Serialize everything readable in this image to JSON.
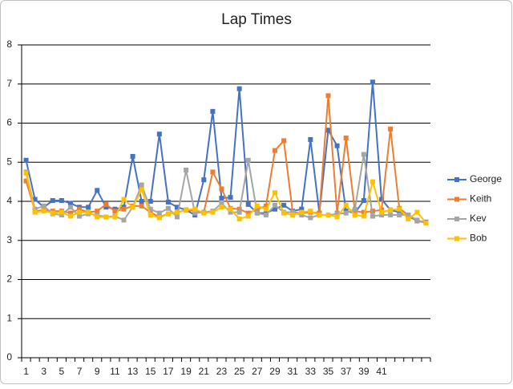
{
  "chart_data": {
    "type": "line",
    "title": "Lap Times",
    "categories": [
      "1",
      null,
      "3",
      null,
      "5",
      null,
      "7",
      null,
      "9",
      null,
      "11",
      null,
      "13",
      null,
      "15",
      null,
      "17",
      null,
      "19",
      null,
      "21",
      null,
      "23",
      null,
      "25",
      null,
      "27",
      null,
      "29",
      null,
      "31",
      null,
      "33",
      null,
      "35",
      null,
      "37",
      null,
      "39",
      null,
      "41",
      null,
      null,
      null,
      null,
      null
    ],
    "ylim": [
      0,
      8
    ],
    "yticks": [
      0,
      1,
      2,
      3,
      4,
      5,
      6,
      7,
      8
    ],
    "grid": true,
    "legend": "right",
    "series": [
      {
        "name": "George",
        "color": "#4472c4",
        "values": [
          5.05,
          4.05,
          3.85,
          4.02,
          4.02,
          3.95,
          3.85,
          3.85,
          4.28,
          3.85,
          3.8,
          3.85,
          5.15,
          4.0,
          4.0,
          5.72,
          3.98,
          3.85,
          3.78,
          3.65,
          4.55,
          6.3,
          4.08,
          4.1,
          6.88,
          3.92,
          3.7,
          3.7,
          3.8,
          3.9,
          3.75,
          3.8,
          5.58,
          3.7,
          5.82,
          5.42,
          3.75,
          3.7,
          4.02,
          7.05,
          4.05,
          3.78,
          3.72,
          3.62,
          3.5,
          3.47
        ]
      },
      {
        "name": "Keith",
        "color": "#ed7d31",
        "values": [
          4.52,
          3.75,
          3.78,
          3.75,
          3.75,
          3.7,
          3.8,
          3.72,
          3.75,
          3.92,
          3.75,
          3.8,
          3.88,
          3.88,
          3.72,
          3.6,
          3.68,
          3.72,
          3.78,
          3.75,
          3.72,
          4.75,
          4.32,
          3.82,
          3.8,
          3.7,
          3.8,
          3.88,
          5.3,
          5.55,
          3.72,
          3.7,
          3.72,
          3.7,
          6.7,
          3.7,
          5.62,
          3.75,
          3.72,
          3.75,
          3.78,
          5.85,
          3.82,
          3.65,
          3.5,
          3.45
        ]
      },
      {
        "name": "Kev",
        "color": "#a5a5a5",
        "values": [
          4.75,
          3.8,
          3.88,
          3.68,
          3.65,
          3.85,
          3.62,
          3.68,
          3.65,
          3.6,
          3.62,
          3.52,
          3.85,
          4.42,
          3.8,
          3.7,
          3.82,
          3.6,
          4.8,
          3.7,
          3.72,
          3.75,
          3.95,
          3.72,
          3.72,
          5.05,
          3.7,
          3.65,
          3.9,
          3.72,
          3.72,
          3.65,
          3.58,
          3.65,
          3.65,
          3.68,
          3.7,
          3.8,
          5.2,
          3.62,
          3.65,
          3.65,
          3.65,
          3.65,
          3.52,
          3.45
        ]
      },
      {
        "name": "Bob",
        "color": "#ffc000",
        "values": [
          4.72,
          3.72,
          3.75,
          3.7,
          3.72,
          3.62,
          3.72,
          3.72,
          3.6,
          3.6,
          3.6,
          4.05,
          3.85,
          4.3,
          3.65,
          3.58,
          3.68,
          3.72,
          3.78,
          3.8,
          3.7,
          3.72,
          3.85,
          3.8,
          3.55,
          3.62,
          3.88,
          3.8,
          4.22,
          3.7,
          3.65,
          3.72,
          3.75,
          3.65,
          3.65,
          3.6,
          3.9,
          3.65,
          3.62,
          4.5,
          3.72,
          3.78,
          3.8,
          3.55,
          3.72,
          3.45
        ]
      }
    ]
  }
}
